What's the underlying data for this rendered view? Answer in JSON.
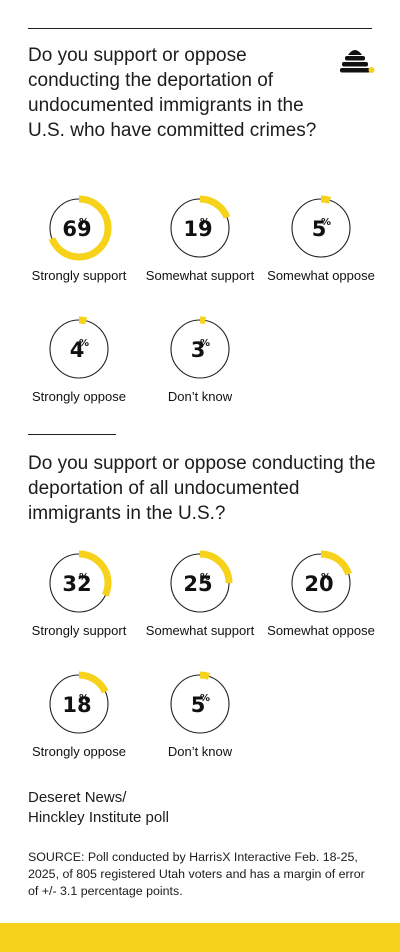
{
  "colors": {
    "accent": "#f7d21a",
    "ink": "#1c1c1c"
  },
  "logo": {
    "icon": "beehive-icon"
  },
  "questions": [
    {
      "title": "Do you support or oppose conducting the deportation of undocumented immigrants in the U.S. who have committed crimes?"
    },
    {
      "title": "Do you support or oppose conducting the deportation of all undocumented immigrants in the U.S.?"
    }
  ],
  "percent_symbol": "%",
  "chart_data": [
    {
      "type": "pie",
      "categories": [
        "Strongly support",
        "Somewhat support",
        "Somewhat oppose",
        "Strongly oppose",
        "Don’t know"
      ],
      "values": [
        69,
        19,
        5,
        4,
        3
      ],
      "value_labels": [
        "69",
        "19",
        "5",
        "4",
        "3"
      ],
      "title": "Do you support or oppose conducting the deportation of undocumented immigrants in the U.S. who have committed crimes?",
      "unit": "%"
    },
    {
      "type": "pie",
      "categories": [
        "Strongly support",
        "Somewhat support",
        "Somewhat oppose",
        "Strongly oppose",
        "Don’t know"
      ],
      "values": [
        32,
        25,
        20,
        18,
        5
      ],
      "value_labels": [
        "32",
        "25",
        "20",
        "18",
        "5"
      ],
      "title": "Do you support or oppose conducting the deportation of all undocumented immigrants in the U.S.?",
      "unit": "%"
    }
  ],
  "credit": {
    "line1": "Deseret News/",
    "line2": "Hinckley Institute poll"
  },
  "source": "SOURCE: Poll conducted by HarrisX Interactive Feb. 18-25, 2025, of 805 registered Utah voters and has a margin of error of +/- 3.1 percentage points."
}
